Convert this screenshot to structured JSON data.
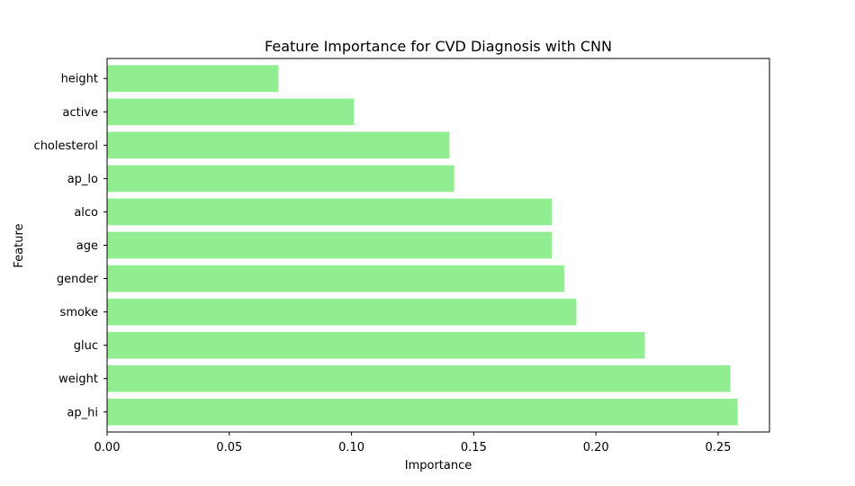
{
  "chart_data": {
    "type": "bar",
    "orientation": "horizontal",
    "title": "Feature Importance for CVD Diagnosis with CNN",
    "xlabel": "Importance",
    "ylabel": "Feature",
    "categories": [
      "ap_hi",
      "weight",
      "gluc",
      "smoke",
      "gender",
      "age",
      "alco",
      "ap_lo",
      "cholesterol",
      "active",
      "height"
    ],
    "values": [
      0.258,
      0.255,
      0.22,
      0.192,
      0.187,
      0.182,
      0.182,
      0.142,
      0.14,
      0.101,
      0.07
    ],
    "xlim": [
      0,
      0.271
    ],
    "xticks": [
      0.0,
      0.05,
      0.1,
      0.15,
      0.2,
      0.25
    ],
    "xtick_labels": [
      "0.00",
      "0.05",
      "0.10",
      "0.15",
      "0.20",
      "0.25"
    ],
    "bar_color": "#90ee90",
    "grid": false,
    "legend": "none"
  }
}
